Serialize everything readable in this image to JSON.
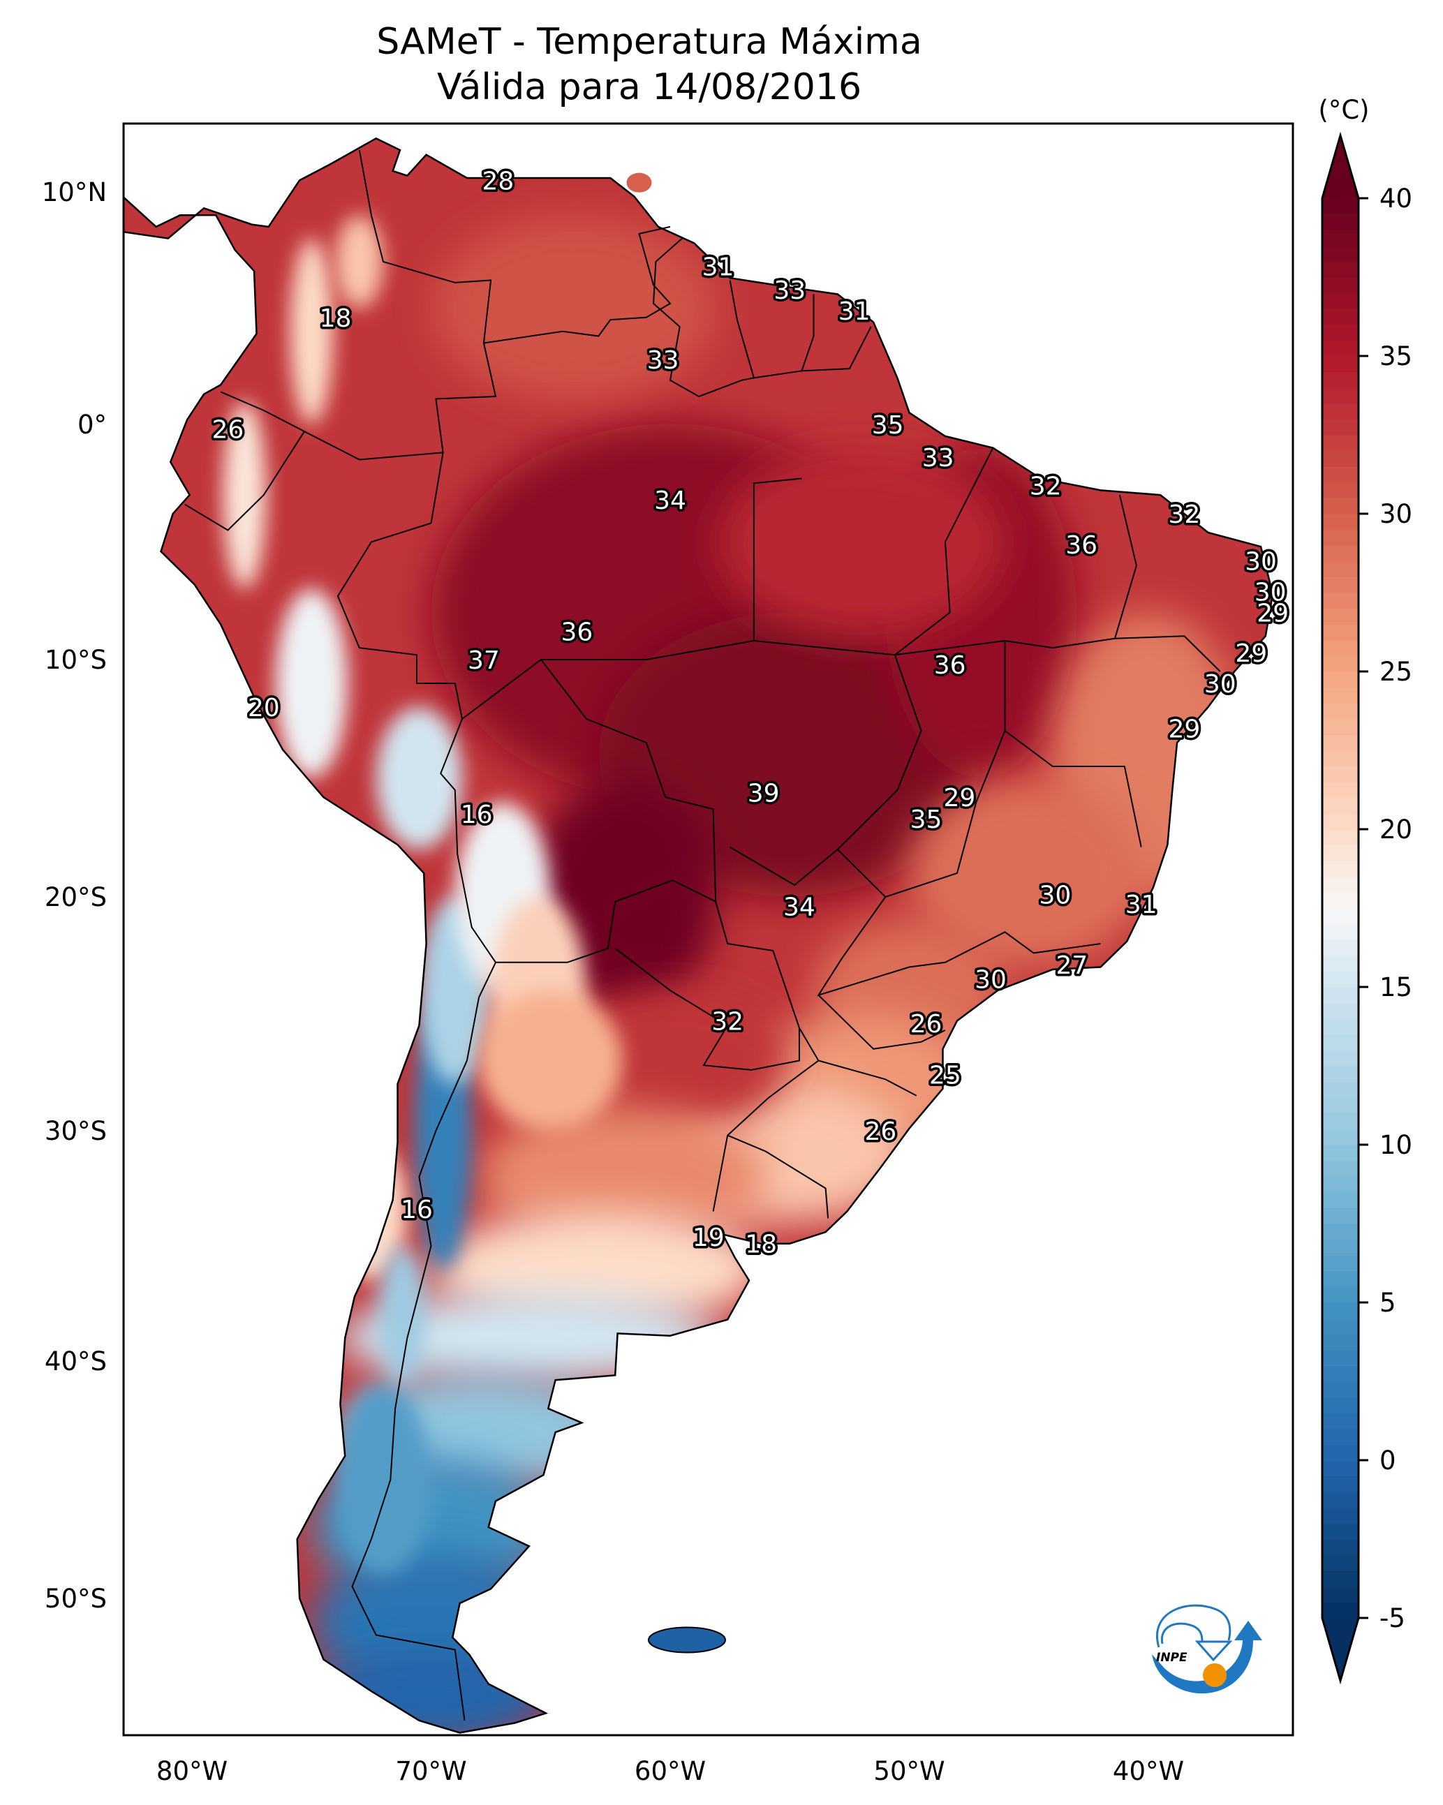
{
  "title": {
    "line1": "SAMeT - Temperatura Máxima",
    "line2": "Válida para 14/08/2016"
  },
  "chart_data": {
    "type": "heatmap",
    "title": "SAMeT - Temperatura Máxima",
    "subtitle": "Válida para 14/08/2016",
    "variable": "Daily maximum temperature",
    "units_label": "(°C)",
    "region": "South America",
    "extent": {
      "lon": [
        -83,
        -33
      ],
      "lat": [
        -56,
        13
      ]
    },
    "x_ticks": [
      {
        "value": -80,
        "label": "80°W"
      },
      {
        "value": -70,
        "label": "70°W"
      },
      {
        "value": -60,
        "label": "60°W"
      },
      {
        "value": -50,
        "label": "50°W"
      },
      {
        "value": -40,
        "label": "40°W"
      }
    ],
    "y_ticks": [
      {
        "value": 10,
        "label": "10°N"
      },
      {
        "value": 0,
        "label": "0°"
      },
      {
        "value": -10,
        "label": "10°S"
      },
      {
        "value": -20,
        "label": "20°S"
      },
      {
        "value": -30,
        "label": "30°S"
      },
      {
        "value": -40,
        "label": "40°S"
      },
      {
        "value": -50,
        "label": "50°S"
      }
    ],
    "colorbar": {
      "label": "(°C)",
      "colormap": "RdBu_r",
      "vmin": -5,
      "vmax": 40,
      "step": 0.5,
      "extend": "both",
      "ticks": [
        -5,
        0,
        5,
        10,
        15,
        20,
        25,
        30,
        35,
        40
      ],
      "tick_labels": [
        "-5",
        "0",
        "5",
        "10",
        "15",
        "20",
        "25",
        "30",
        "35",
        "40"
      ],
      "color_stops": [
        {
          "value": -5,
          "color": "#053061"
        },
        {
          "value": 0,
          "color": "#2166ac"
        },
        {
          "value": 5,
          "color": "#4393c3"
        },
        {
          "value": 10,
          "color": "#92c5de"
        },
        {
          "value": 15,
          "color": "#d1e5f0"
        },
        {
          "value": 17.5,
          "color": "#f7f7f7"
        },
        {
          "value": 20,
          "color": "#fddbc7"
        },
        {
          "value": 25,
          "color": "#f4a582"
        },
        {
          "value": 30,
          "color": "#d6604d"
        },
        {
          "value": 35,
          "color": "#b2182b"
        },
        {
          "value": 40,
          "color": "#67001f"
        }
      ]
    },
    "station_labels": [
      {
        "value": 28,
        "lon": -67.2,
        "lat": 10.5
      },
      {
        "value": 31,
        "lon": -58.0,
        "lat": 6.8
      },
      {
        "value": 33,
        "lon": -55.0,
        "lat": 5.8
      },
      {
        "value": 31,
        "lon": -52.3,
        "lat": 4.9
      },
      {
        "value": 18,
        "lon": -74.0,
        "lat": 4.6
      },
      {
        "value": 33,
        "lon": -60.3,
        "lat": 2.8
      },
      {
        "value": 35,
        "lon": -50.9,
        "lat": 0.0
      },
      {
        "value": 26,
        "lon": -78.5,
        "lat": -0.2
      },
      {
        "value": 33,
        "lon": -48.8,
        "lat": -1.4
      },
      {
        "value": 32,
        "lon": -44.3,
        "lat": -2.6
      },
      {
        "value": 34,
        "lon": -60.0,
        "lat": -3.2
      },
      {
        "value": 32,
        "lon": -38.5,
        "lat": -3.8
      },
      {
        "value": 36,
        "lon": -42.8,
        "lat": -5.1
      },
      {
        "value": 30,
        "lon": -35.3,
        "lat": -5.8
      },
      {
        "value": 30,
        "lon": -34.9,
        "lat": -7.1
      },
      {
        "value": 29,
        "lon": -34.8,
        "lat": -8.0
      },
      {
        "value": 36,
        "lon": -63.9,
        "lat": -8.8
      },
      {
        "value": 29,
        "lon": -35.7,
        "lat": -9.7
      },
      {
        "value": 37,
        "lon": -67.8,
        "lat": -10.0
      },
      {
        "value": 36,
        "lon": -48.3,
        "lat": -10.2
      },
      {
        "value": 30,
        "lon": -37.0,
        "lat": -11.0
      },
      {
        "value": 20,
        "lon": -77.0,
        "lat": -12.0
      },
      {
        "value": 29,
        "lon": -38.5,
        "lat": -12.9
      },
      {
        "value": 39,
        "lon": -56.1,
        "lat": -15.6
      },
      {
        "value": 29,
        "lon": -47.9,
        "lat": -15.8
      },
      {
        "value": 16,
        "lon": -68.1,
        "lat": -16.5
      },
      {
        "value": 35,
        "lon": -49.3,
        "lat": -16.7
      },
      {
        "value": 30,
        "lon": -43.9,
        "lat": -19.9
      },
      {
        "value": 34,
        "lon": -54.6,
        "lat": -20.4
      },
      {
        "value": 31,
        "lon": -40.3,
        "lat": -20.3
      },
      {
        "value": 27,
        "lon": -43.2,
        "lat": -22.9
      },
      {
        "value": 30,
        "lon": -46.6,
        "lat": -23.5
      },
      {
        "value": 32,
        "lon": -57.6,
        "lat": -25.3
      },
      {
        "value": 26,
        "lon": -49.3,
        "lat": -25.4
      },
      {
        "value": 25,
        "lon": -48.5,
        "lat": -27.6
      },
      {
        "value": 26,
        "lon": -51.2,
        "lat": -30.0
      },
      {
        "value": 16,
        "lon": -70.6,
        "lat": -33.4
      },
      {
        "value": 19,
        "lon": -58.4,
        "lat": -34.6
      },
      {
        "value": 18,
        "lon": -56.2,
        "lat": -34.9
      }
    ]
  },
  "logo": {
    "text": "INPE",
    "arrow_color": "#1f78c1",
    "dot_color": "#f39200"
  }
}
